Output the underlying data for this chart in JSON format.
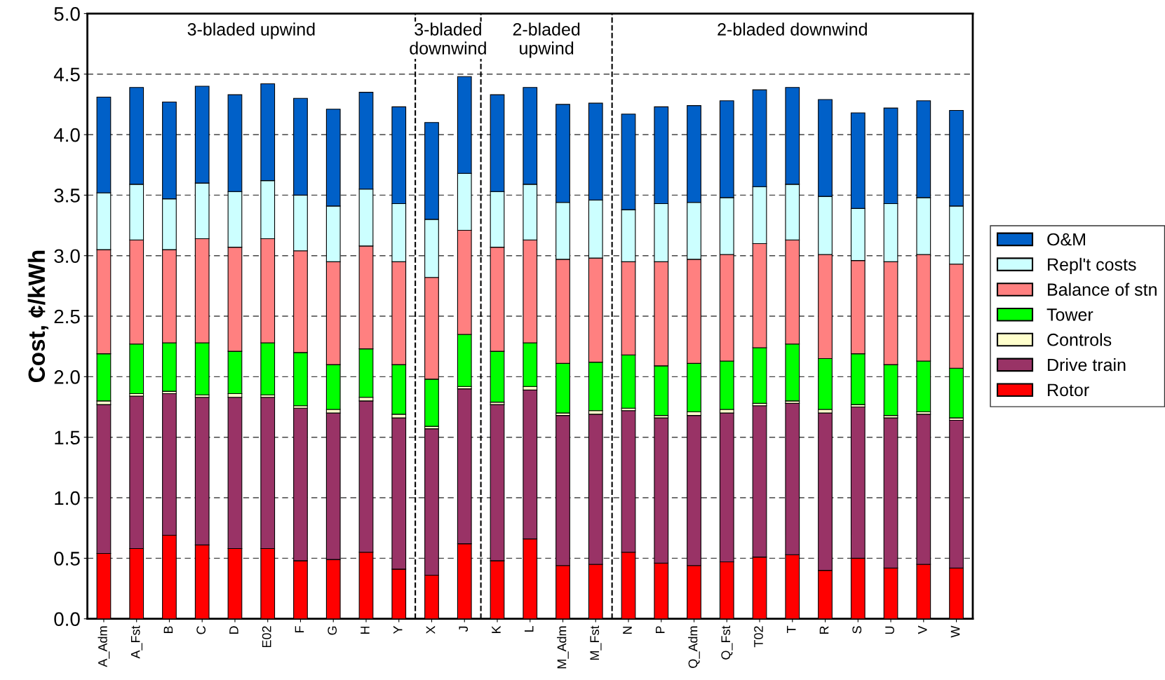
{
  "chart_data": {
    "type": "bar",
    "stacked": true,
    "ylabel": "Cost, ¢/kWh",
    "categories": [
      "A_Adm",
      "A_Fst",
      "B",
      "C",
      "D",
      "E02",
      "F",
      "G",
      "H",
      "Y",
      "X",
      "J",
      "K",
      "L",
      "M_Adm",
      "M_Fst",
      "N",
      "P",
      "Q_Adm",
      "Q_Fst",
      "T02",
      "T",
      "R",
      "S",
      "U",
      "V",
      "W"
    ],
    "series": [
      {
        "name": "Rotor",
        "color": "#ff0000",
        "values": [
          0.54,
          0.58,
          0.69,
          0.61,
          0.58,
          0.58,
          0.48,
          0.49,
          0.55,
          0.41,
          0.36,
          0.62,
          0.48,
          0.66,
          0.44,
          0.45,
          0.55,
          0.46,
          0.44,
          0.47,
          0.51,
          0.53,
          0.4,
          0.5,
          0.42,
          0.45,
          0.42
        ]
      },
      {
        "name": "Drive train",
        "color": "#993366",
        "values": [
          1.23,
          1.26,
          1.17,
          1.22,
          1.25,
          1.25,
          1.26,
          1.21,
          1.25,
          1.25,
          1.21,
          1.28,
          1.29,
          1.23,
          1.24,
          1.24,
          1.17,
          1.2,
          1.24,
          1.23,
          1.25,
          1.25,
          1.3,
          1.25,
          1.24,
          1.24,
          1.22
        ]
      },
      {
        "name": "Controls",
        "color": "#ffffcc",
        "values": [
          0.03,
          0.02,
          0.02,
          0.02,
          0.03,
          0.02,
          0.02,
          0.03,
          0.03,
          0.03,
          0.02,
          0.02,
          0.02,
          0.03,
          0.02,
          0.03,
          0.02,
          0.02,
          0.03,
          0.03,
          0.02,
          0.02,
          0.03,
          0.02,
          0.02,
          0.02,
          0.02
        ]
      },
      {
        "name": "Tower",
        "color": "#00ff00",
        "values": [
          0.39,
          0.41,
          0.4,
          0.43,
          0.35,
          0.43,
          0.44,
          0.37,
          0.4,
          0.41,
          0.39,
          0.43,
          0.42,
          0.36,
          0.41,
          0.4,
          0.44,
          0.41,
          0.4,
          0.4,
          0.46,
          0.47,
          0.42,
          0.42,
          0.42,
          0.42,
          0.41
        ]
      },
      {
        "name": "Balance of stn",
        "color": "#ff8080",
        "values": [
          0.86,
          0.86,
          0.77,
          0.86,
          0.86,
          0.86,
          0.84,
          0.85,
          0.85,
          0.85,
          0.84,
          0.86,
          0.86,
          0.85,
          0.86,
          0.86,
          0.77,
          0.86,
          0.86,
          0.88,
          0.86,
          0.86,
          0.86,
          0.77,
          0.85,
          0.88,
          0.86
        ]
      },
      {
        "name": "Repl't costs",
        "color": "#ccffff",
        "values": [
          0.47,
          0.46,
          0.42,
          0.46,
          0.46,
          0.48,
          0.46,
          0.46,
          0.47,
          0.48,
          0.48,
          0.47,
          0.46,
          0.46,
          0.47,
          0.48,
          0.43,
          0.48,
          0.47,
          0.47,
          0.47,
          0.46,
          0.48,
          0.43,
          0.48,
          0.47,
          0.48
        ]
      },
      {
        "name": "O&M",
        "color": "#0060c8",
        "values": [
          0.79,
          0.8,
          0.8,
          0.8,
          0.8,
          0.8,
          0.8,
          0.8,
          0.8,
          0.8,
          0.8,
          0.8,
          0.8,
          0.8,
          0.81,
          0.8,
          0.79,
          0.8,
          0.8,
          0.8,
          0.8,
          0.8,
          0.8,
          0.79,
          0.79,
          0.8,
          0.79
        ]
      }
    ],
    "ylim": [
      0,
      5.0
    ],
    "yticks": [
      {
        "value": 0,
        "label": "0.0"
      },
      {
        "value": 0.5,
        "label": "0.5"
      },
      {
        "value": 1,
        "label": "1.0"
      },
      {
        "value": 1.5,
        "label": "1.5"
      },
      {
        "value": 2,
        "label": "2.0"
      },
      {
        "value": 2.5,
        "label": "2.5"
      },
      {
        "value": 3,
        "label": "3.0"
      },
      {
        "value": 3.5,
        "label": "3.5"
      },
      {
        "value": 4,
        "label": "4.0"
      },
      {
        "value": 4.5,
        "label": "4.5"
      },
      {
        "value": 5,
        "label": "5.0"
      }
    ],
    "grid": "y",
    "legend": "right",
    "annotations": [
      "3-bladed upwind",
      "3-bladed\ndownwind",
      "2-bladed\nupwind",
      "2-bladed downwind"
    ]
  }
}
